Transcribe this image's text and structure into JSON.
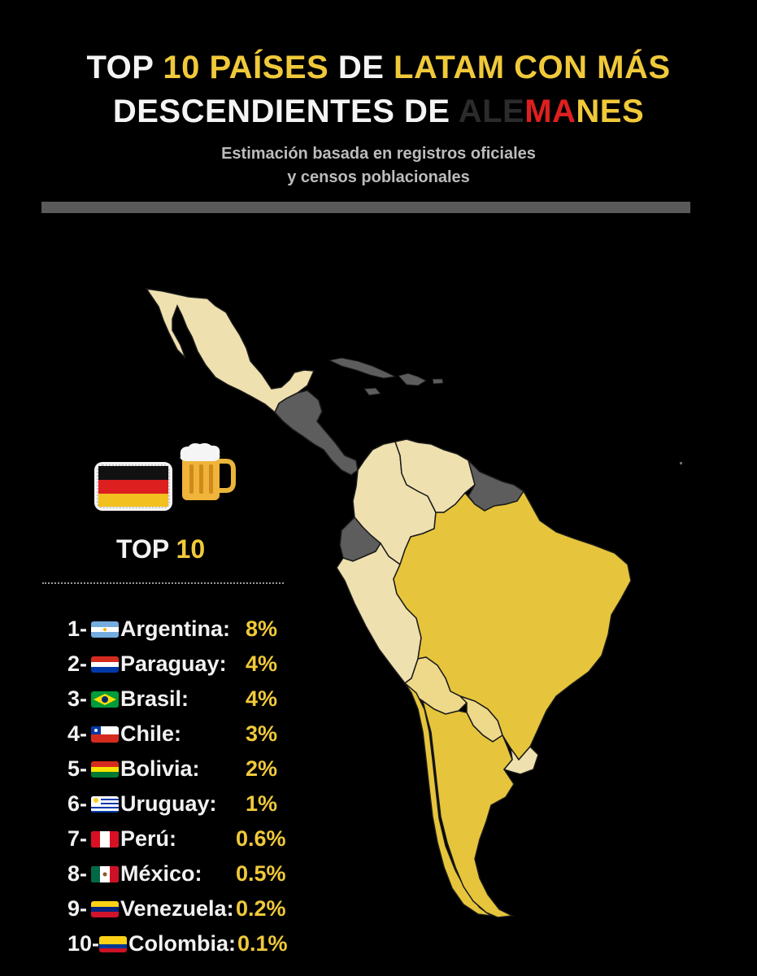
{
  "header": {
    "line1_a": "TOP ",
    "line1_b": "10 PAÍSES",
    "line1_c": " DE ",
    "line1_d": "LATAM CON MÁS",
    "line2_a": "DESCENDIENTES DE ",
    "line2_b": "ALE",
    "line2_c": "MA",
    "line2_d": "NES",
    "subtitle_1": "Estimación basada en registros oficiales",
    "subtitle_2": "y censos poblacionales"
  },
  "legend": {
    "top_a": "TOP ",
    "top_b": "10"
  },
  "icons": [
    "germany-flag-icon",
    "beer-mug-icon"
  ],
  "colors": {
    "accent": "#f0c93a",
    "map_dark_yellow": "#e6c53c",
    "map_mid_yellow": "#eed98a",
    "map_light": "#efe0b0",
    "map_grey": "#5d5d5d",
    "background": "#000000"
  },
  "ranking": [
    {
      "num": "1-",
      "flag": "argentina-flag-icon",
      "name": "Argentina:",
      "value": "8%"
    },
    {
      "num": "2-",
      "flag": "paraguay-flag-icon",
      "name": "Paraguay:",
      "value": "4%"
    },
    {
      "num": "3-",
      "flag": "brazil-flag-icon",
      "name": "Brasil:",
      "value": "4%"
    },
    {
      "num": "4-",
      "flag": "chile-flag-icon",
      "name": "Chile:",
      "value": "3%"
    },
    {
      "num": "5-",
      "flag": "bolivia-flag-icon",
      "name": "Bolivia:",
      "value": "2%"
    },
    {
      "num": "6-",
      "flag": "uruguay-flag-icon",
      "name": "Uruguay:",
      "value": "1%"
    },
    {
      "num": "7-",
      "flag": "peru-flag-icon",
      "name": "Perú:",
      "value": "0.6%"
    },
    {
      "num": "8-",
      "flag": "mexico-flag-icon",
      "name": "México:",
      "value": "0.5%"
    },
    {
      "num": "9-",
      "flag": "venezuela-flag-icon",
      "name": "Venezuela:",
      "value": "0.2%"
    },
    {
      "num": "10-",
      "flag": "colombia-flag-icon",
      "name": "Colombia:",
      "value": "0.1%"
    }
  ]
}
